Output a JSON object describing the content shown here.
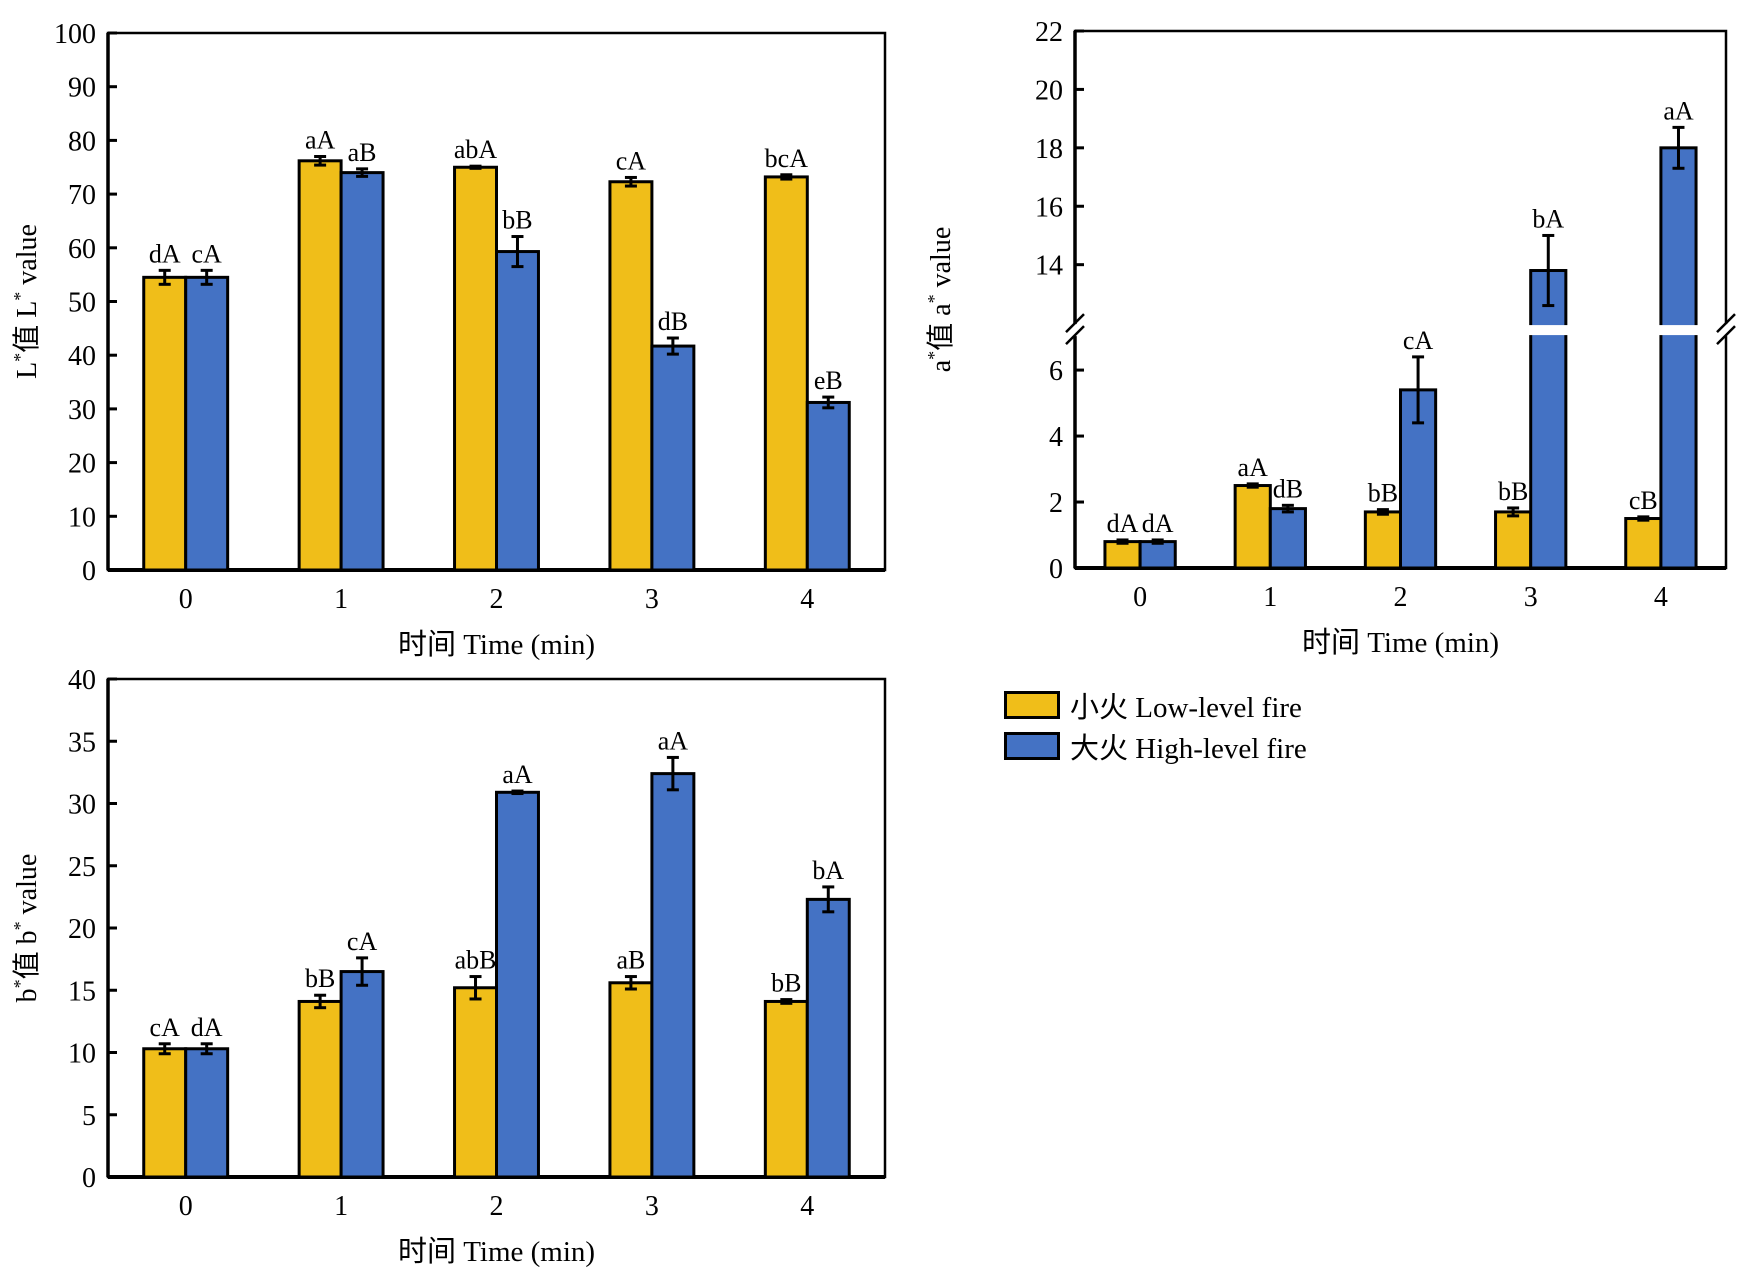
{
  "colors": {
    "low": "#F0BE19",
    "high": "#4472C4"
  },
  "legend": [
    {
      "label": "小火 Low-level fire",
      "series": "low"
    },
    {
      "label": "大火 High-level fire",
      "series": "high"
    }
  ],
  "chart_data": [
    {
      "id": "L",
      "type": "bar",
      "title": "",
      "xlabel": "时间 Time (min)",
      "ylabel": "L*值 L* value",
      "ylim": [
        0,
        100
      ],
      "yticks": [
        0,
        10,
        20,
        30,
        40,
        50,
        60,
        70,
        80,
        90,
        100
      ],
      "categories": [
        "0",
        "1",
        "2",
        "3",
        "4"
      ],
      "series": [
        {
          "name": "小火 Low-level fire",
          "key": "low",
          "values": [
            54.5,
            76.2,
            75.0,
            72.3,
            73.2
          ],
          "errors": [
            1.3,
            0.8,
            0.2,
            0.8,
            0.4
          ],
          "labels": [
            "dA",
            "aA",
            "abA",
            "cA",
            "bcA"
          ]
        },
        {
          "name": "大火 High-level fire",
          "key": "high",
          "values": [
            54.5,
            74.0,
            59.3,
            41.7,
            31.2
          ],
          "errors": [
            1.3,
            0.7,
            2.8,
            1.5,
            1.0
          ],
          "labels": [
            "cA",
            "aB",
            "bB",
            "dB",
            "eB"
          ]
        }
      ],
      "grid": false
    },
    {
      "id": "a",
      "type": "bar",
      "title": "",
      "xlabel": "时间 Time (min)",
      "ylabel": "a*值 a* value",
      "ylim": [
        0,
        22
      ],
      "axis_break": [
        7,
        12
      ],
      "yticks": [
        0,
        2,
        4,
        6,
        14,
        16,
        18,
        20,
        22
      ],
      "categories": [
        "0",
        "1",
        "2",
        "3",
        "4"
      ],
      "series": [
        {
          "name": "小火 Low-level fire",
          "key": "low",
          "values": [
            0.8,
            2.5,
            1.7,
            1.7,
            1.5
          ],
          "errors": [
            0.05,
            0.05,
            0.07,
            0.12,
            0.05
          ],
          "labels": [
            "dA",
            "aA",
            "bB",
            "bB",
            "cB"
          ]
        },
        {
          "name": "大火 High-level fire",
          "key": "high",
          "values": [
            0.8,
            1.8,
            5.4,
            13.8,
            18.0
          ],
          "errors": [
            0.05,
            0.1,
            1.0,
            1.2,
            0.7
          ],
          "labels": [
            "dA",
            "dB",
            "cA",
            "bA",
            "aA"
          ]
        }
      ],
      "grid": false
    },
    {
      "id": "b",
      "type": "bar",
      "title": "",
      "xlabel": "时间 Time (min)",
      "ylabel": "b*值 b* value",
      "ylim": [
        0,
        40
      ],
      "yticks": [
        0,
        5,
        10,
        15,
        20,
        25,
        30,
        35,
        40
      ],
      "categories": [
        "0",
        "1",
        "2",
        "3",
        "4"
      ],
      "series": [
        {
          "name": "小火 Low-level fire",
          "key": "low",
          "values": [
            10.3,
            14.1,
            15.2,
            15.6,
            14.1
          ],
          "errors": [
            0.4,
            0.5,
            0.9,
            0.5,
            0.15
          ],
          "labels": [
            "cA",
            "bB",
            "abB",
            "aB",
            "bB"
          ]
        },
        {
          "name": "大火 High-level fire",
          "key": "high",
          "values": [
            10.3,
            16.5,
            30.9,
            32.4,
            22.3
          ],
          "errors": [
            0.4,
            1.1,
            0.1,
            1.3,
            1.0
          ],
          "labels": [
            "dA",
            "cA",
            "aA",
            "aA",
            "bA"
          ]
        }
      ],
      "grid": false
    }
  ]
}
